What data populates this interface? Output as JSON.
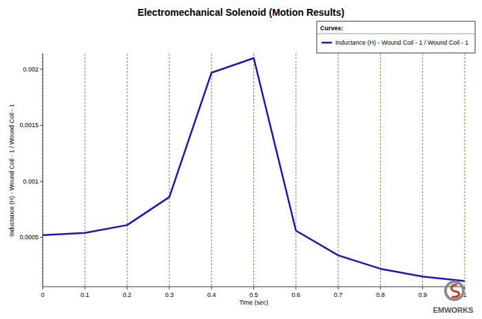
{
  "chart_data": {
    "type": "line",
    "title": "Electromechanical Solenoid (Motion Results)",
    "x_label": "Time (sec)",
    "y_label": "Inductance (H) - Wound Coil - 1 / Wound Coil - 1",
    "legend_title": "Curves:",
    "legend": "top-right",
    "grid": "x",
    "annotations": [
      "EMWORKS"
    ],
    "x": [
      0,
      0.1,
      0.2,
      0.3,
      0.4,
      0.5,
      0.6,
      0.7,
      0.8,
      0.9,
      1
    ],
    "series": [
      {
        "name": "Inductance (H) - Wound Coil - 1 / Wound Coil - 1",
        "color": "#1414c8",
        "line_style": "solid",
        "values": [
          0.00052,
          0.00054,
          0.00061,
          0.00086,
          0.00197,
          0.0021,
          0.00056,
          0.00034,
          0.00022,
          0.00015,
          0.00011
        ]
      }
    ],
    "xlim": [
      0,
      1
    ],
    "xticks": [
      0,
      0.1,
      0.2,
      0.3,
      0.4,
      0.5,
      0.6,
      0.7,
      0.8,
      0.9,
      1
    ],
    "ylim": [
      6e-05,
      0.00214
    ],
    "yticks": [
      0.0005,
      0.001,
      0.0015,
      0.002
    ]
  }
}
